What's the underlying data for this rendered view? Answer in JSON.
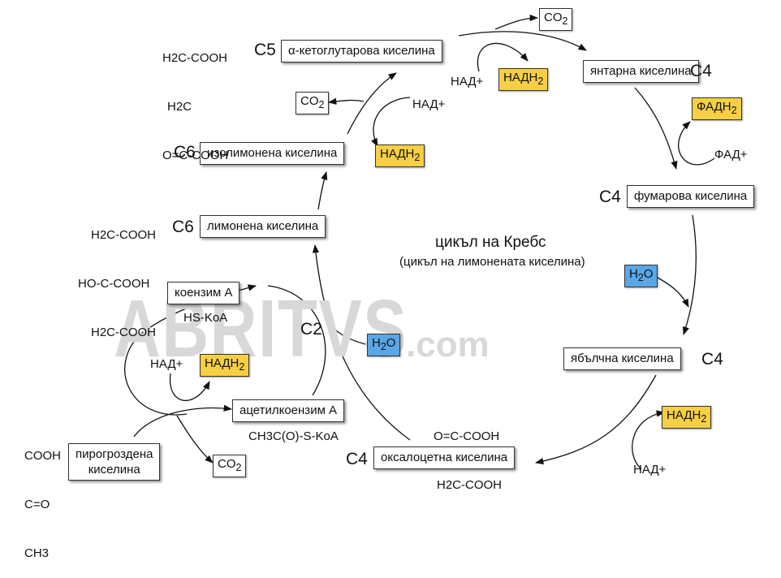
{
  "title": "цикъл на Кребс",
  "subtitle": "(цикъл на лимонената киселина)",
  "watermark": {
    "main": "ABRITVS",
    "suffix": ".com"
  },
  "compounds": {
    "ketoglutaric": "α-кетоглутарова киселина",
    "succinic": "янтарна киселина",
    "fumaric": "фумарова киселина",
    "malic": "ябълчна киселина",
    "oxaloacetic": "оксалоцетна киселина",
    "citric": "лимонена киселина",
    "isocitric": "изолимонена киселина",
    "coenzyme_a": "коензим А",
    "acetyl_coa": "ацетилкоензим А",
    "pyruvic_line1": "пирогроздена",
    "pyruvic_line2": "киселина"
  },
  "carbon_counts": {
    "ketoglutaric": "C5",
    "succinic": "C4",
    "fumaric": "C4",
    "malic": "C4",
    "oxaloacetic": "C4",
    "citric": "C6",
    "isocitric": "C6",
    "acetyl": "C2"
  },
  "cofactors": {
    "nad": "НАД+",
    "nadh_base": "НАДН",
    "nadh_sub": "2",
    "fad": "ФАД+",
    "fadh_base": "ФАДН",
    "fadh_sub": "2",
    "co_base": "CO",
    "co_sub": "2",
    "h_base": "H",
    "h_sub": "2",
    "o": "O"
  },
  "labels": {
    "hs_koa": "HS-KoA",
    "acetyl_formula": "CH3C(O)-S-KoA"
  },
  "formulas": {
    "ketoglutaric": [
      "H2C-COOH",
      "H2C",
      "O=C-COOH"
    ],
    "citric": [
      "H2C-COOH",
      "HO-C-COOH",
      "H2C-COOH"
    ],
    "oxaloacetic": [
      "O=C-COOH",
      "H2C-COOH"
    ],
    "pyruvic": [
      "COOH",
      "C=O",
      "CH3"
    ]
  },
  "colors": {
    "nadh_fill": "#f6cf45",
    "water_fill": "#5aa7e6",
    "box_border": "#333333",
    "watermark": "#d8d8d8"
  }
}
